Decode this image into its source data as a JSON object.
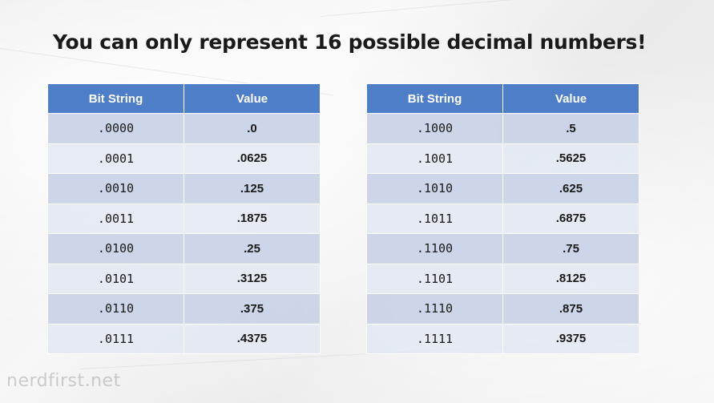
{
  "title": "You can only represent 16 possible decimal numbers!",
  "headers": {
    "bit_string": "Bit String",
    "value": "Value"
  },
  "left_table": [
    {
      "bits": ".0000",
      "value": ".0"
    },
    {
      "bits": ".0001",
      "value": ".0625"
    },
    {
      "bits": ".0010",
      "value": ".125"
    },
    {
      "bits": ".0011",
      "value": ".1875"
    },
    {
      "bits": ".0100",
      "value": ".25"
    },
    {
      "bits": ".0101",
      "value": ".3125"
    },
    {
      "bits": ".0110",
      "value": ".375"
    },
    {
      "bits": ".0111",
      "value": ".4375"
    }
  ],
  "right_table": [
    {
      "bits": ".1000",
      "value": ".5"
    },
    {
      "bits": ".1001",
      "value": ".5625"
    },
    {
      "bits": ".1010",
      "value": ".625"
    },
    {
      "bits": ".1011",
      "value": ".6875"
    },
    {
      "bits": ".1100",
      "value": ".75"
    },
    {
      "bits": ".1101",
      "value": ".8125"
    },
    {
      "bits": ".1110",
      "value": ".875"
    },
    {
      "bits": ".1111",
      "value": ".9375"
    }
  ],
  "watermark": "nerdfirst.net",
  "colors": {
    "header": "#4f7ec9",
    "row_odd": "#c8d2e6",
    "row_even": "#e2e7f2"
  }
}
